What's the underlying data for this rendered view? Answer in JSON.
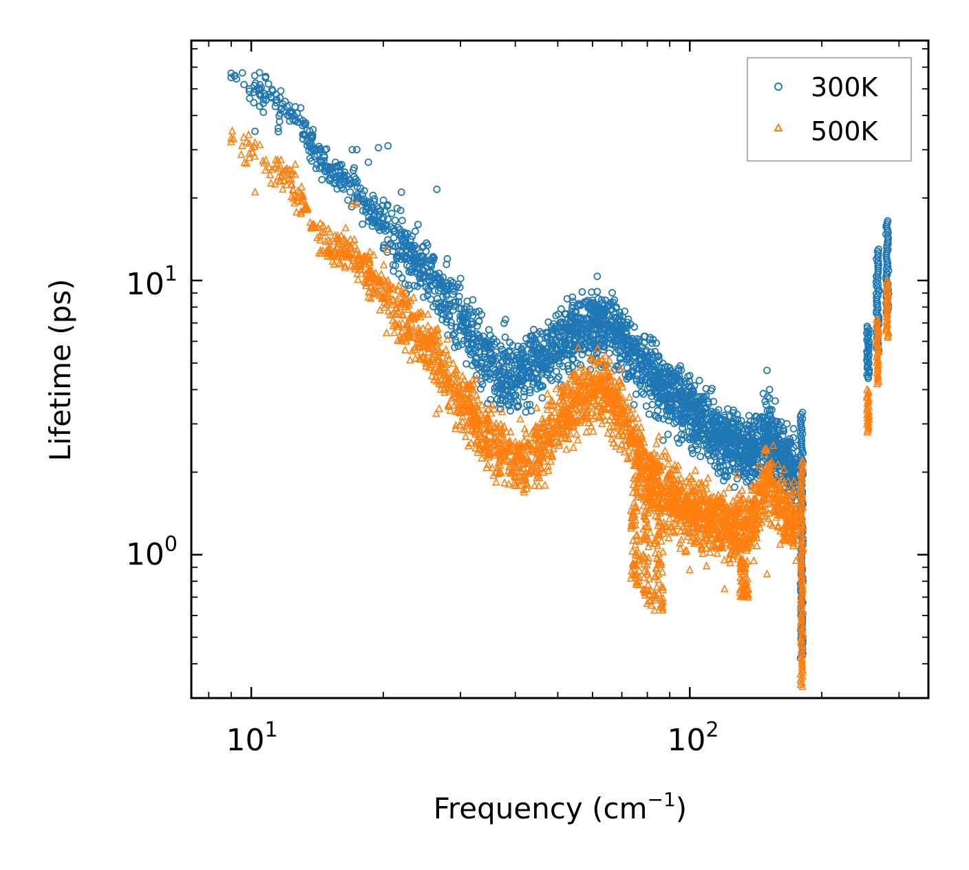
{
  "chart_data": {
    "type": "scatter",
    "title": "",
    "xlabel": "Frequency (cm",
    "xlabel_sup": "−1",
    "xlabel_tail": ")",
    "ylabel": "Lifetime (ps)",
    "xscale": "log",
    "yscale": "log",
    "xlim": [
      7.3,
      350
    ],
    "ylim": [
      0.3,
      75
    ],
    "x_ticks": [
      {
        "value": 10,
        "base": "10",
        "exp": "1"
      },
      {
        "value": 100,
        "base": "10",
        "exp": "2"
      }
    ],
    "y_ticks": [
      {
        "value": 1,
        "base": "10",
        "exp": "0"
      },
      {
        "value": 10,
        "base": "10",
        "exp": "1"
      }
    ],
    "grid": false,
    "legend_position": "top-right",
    "series": [
      {
        "name": "300K",
        "color": "#1f77b4",
        "marker": "circle",
        "trend": [
          [
            9,
            57
          ],
          [
            10,
            52
          ],
          [
            11,
            47
          ],
          [
            12,
            42
          ],
          [
            15,
            26
          ],
          [
            17,
            22
          ],
          [
            20,
            16
          ],
          [
            25,
            11
          ],
          [
            30,
            7.2
          ],
          [
            35,
            5.0
          ],
          [
            40,
            4.5
          ],
          [
            45,
            5.0
          ],
          [
            50,
            5.8
          ],
          [
            55,
            6.6
          ],
          [
            62,
            7.0
          ],
          [
            70,
            6.2
          ],
          [
            80,
            4.6
          ],
          [
            100,
            3.3
          ],
          [
            120,
            2.6
          ],
          [
            140,
            2.4
          ],
          [
            150,
            2.8
          ],
          [
            160,
            2.4
          ],
          [
            175,
            2.0
          ]
        ],
        "outliers": [
          [
            9,
            57
          ],
          [
            9,
            55
          ],
          [
            9.9,
            50
          ],
          [
            9.9,
            49
          ],
          [
            10.2,
            35
          ],
          [
            10.8,
            45.5
          ],
          [
            11.4,
            44.5
          ],
          [
            11.8,
            44
          ],
          [
            11.6,
            38
          ],
          [
            12.4,
            41
          ],
          [
            12.6,
            43
          ],
          [
            15,
            26
          ],
          [
            16.2,
            23
          ],
          [
            17,
            30
          ],
          [
            17.4,
            30
          ],
          [
            18.5,
            27
          ],
          [
            19.5,
            30.5
          ],
          [
            20.5,
            31
          ],
          [
            22,
            21
          ],
          [
            24,
            16
          ],
          [
            26.5,
            21.5
          ],
          [
            28,
            12
          ],
          [
            32,
            8.5
          ],
          [
            38,
            7.2
          ],
          [
            45,
            5.6
          ],
          [
            55,
            7.7
          ],
          [
            60,
            8.2
          ],
          [
            63,
            8.5
          ],
          [
            66,
            8.3
          ],
          [
            68,
            8.0
          ],
          [
            75,
            5.6
          ],
          [
            85,
            5.3
          ],
          [
            90,
            4.8
          ],
          [
            100,
            4.5
          ],
          [
            110,
            3.6
          ],
          [
            120,
            3.0
          ],
          [
            150,
            4.7
          ],
          [
            152,
            4.0
          ],
          [
            175,
            2.5
          ]
        ],
        "bands": [
          {
            "x": 180,
            "y_min": 0.42,
            "y_max": 3.3
          },
          {
            "x": 255,
            "y_min": 4.4,
            "y_max": 6.8
          },
          {
            "x": 268,
            "y_min": 5.5,
            "y_max": 13.0
          },
          {
            "x": 282,
            "y_min": 7.5,
            "y_max": 16.5
          }
        ]
      },
      {
        "name": "500K",
        "color": "#ff7f0e",
        "marker": "triangle",
        "trend": [
          [
            9,
            33
          ],
          [
            10,
            30
          ],
          [
            11,
            27
          ],
          [
            12,
            25
          ],
          [
            15,
            13
          ],
          [
            17,
            12.5
          ],
          [
            20,
            9
          ],
          [
            25,
            5.8
          ],
          [
            30,
            3.7
          ],
          [
            35,
            2.6
          ],
          [
            40,
            2.1
          ],
          [
            45,
            2.4
          ],
          [
            50,
            3.0
          ],
          [
            55,
            3.7
          ],
          [
            62,
            4.2
          ],
          [
            70,
            3.2
          ],
          [
            80,
            2.0
          ],
          [
            90,
            1.6
          ],
          [
            100,
            1.45
          ],
          [
            120,
            1.3
          ],
          [
            130,
            1.2
          ],
          [
            140,
            1.4
          ],
          [
            150,
            1.9
          ],
          [
            160,
            1.5
          ],
          [
            175,
            1.3
          ]
        ],
        "outliers": [
          [
            9,
            33
          ],
          [
            9,
            32
          ],
          [
            9.9,
            29
          ],
          [
            9.9,
            28
          ],
          [
            10.2,
            21
          ],
          [
            10.8,
            27.5
          ],
          [
            11.6,
            23
          ],
          [
            11.8,
            21.5
          ],
          [
            12.4,
            25
          ],
          [
            12.6,
            26.5
          ],
          [
            15,
            13
          ],
          [
            16.2,
            12.6
          ],
          [
            17,
            19
          ],
          [
            17.4,
            19
          ],
          [
            18.5,
            10.2
          ],
          [
            20.5,
            10
          ],
          [
            22,
            9.1
          ],
          [
            24,
            7.6
          ],
          [
            26.5,
            6.6
          ],
          [
            28,
            6.1
          ],
          [
            60,
            5.2
          ],
          [
            63,
            5.1
          ],
          [
            85,
            2.7
          ],
          [
            90,
            2.0
          ],
          [
            100,
            0.88
          ],
          [
            110,
            1.9
          ],
          [
            120,
            0.75
          ],
          [
            130,
            1.1
          ],
          [
            140,
            0.95
          ],
          [
            150,
            0.85
          ],
          [
            155,
            2.5
          ],
          [
            175,
            1.5
          ]
        ],
        "dips": [
          {
            "x": 75,
            "y_min": 0.75,
            "y_max": 2.0
          },
          {
            "x": 80,
            "y_min": 0.65,
            "y_max": 1.8
          },
          {
            "x": 85,
            "y_min": 0.62,
            "y_max": 1.6
          },
          {
            "x": 133,
            "y_min": 0.68,
            "y_max": 0.95
          }
        ],
        "bands": [
          {
            "x": 180,
            "y_min": 0.33,
            "y_max": 2.2
          },
          {
            "x": 255,
            "y_min": 2.8,
            "y_max": 4.0
          },
          {
            "x": 268,
            "y_min": 4.2,
            "y_max": 7.2
          },
          {
            "x": 282,
            "y_min": 6.2,
            "y_max": 10.0
          }
        ]
      }
    ]
  }
}
